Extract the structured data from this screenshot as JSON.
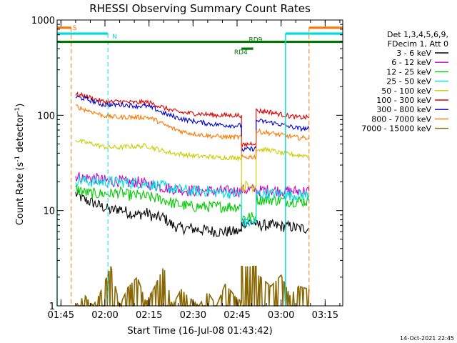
{
  "chart_data": {
    "type": "line",
    "title": "RHESSI Observing Summary Count Rates",
    "xlabel": "Start Time (16-Jul-08 01:43:42)",
    "ylabel_main": "Count Rate (s",
    "ylabel_sup1": "-1",
    "ylabel_mid": " detector",
    "ylabel_sup2": "-1",
    "ylabel_end": ")",
    "yscale": "log",
    "ylim": [
      1,
      1000
    ],
    "xlim_min": [
      103.7,
      201
    ],
    "y_ticks": [
      {
        "value": 1,
        "label": "1"
      },
      {
        "value": 10,
        "label": "10"
      },
      {
        "value": 100,
        "label": "100"
      },
      {
        "value": 1000,
        "label": "1000"
      }
    ],
    "x_ticks": [
      {
        "value": 105,
        "label": "01:45"
      },
      {
        "value": 120,
        "label": "02:00"
      },
      {
        "value": 135,
        "label": "02:15"
      },
      {
        "value": 150,
        "label": "02:30"
      },
      {
        "value": 165,
        "label": "02:45"
      },
      {
        "value": 180,
        "label": "03:00"
      },
      {
        "value": 195,
        "label": "03:15"
      }
    ],
    "legend_header": [
      "Det 1,3,4,5,6,9,",
      "FDecim 1, Att 0"
    ],
    "legend_position": "right",
    "series": [
      {
        "name": "3 - 6 keV",
        "color": "#000000",
        "points": [
          [
            110,
            15
          ],
          [
            113,
            13
          ],
          [
            116,
            12
          ],
          [
            119,
            11
          ],
          [
            122,
            10
          ],
          [
            125,
            10.5
          ],
          [
            128,
            9.5
          ],
          [
            131,
            9
          ],
          [
            134,
            9.5
          ],
          [
            137,
            8.5
          ],
          [
            140,
            8.5
          ],
          [
            143,
            7
          ],
          [
            146,
            6.5
          ],
          [
            149,
            6.5
          ],
          [
            152,
            6.3
          ],
          [
            155,
            6.2
          ],
          [
            158,
            6
          ],
          [
            161,
            6
          ],
          [
            164,
            6
          ],
          [
            166.5,
            6
          ],
          [
            166.5,
            7.5
          ],
          [
            171.5,
            7.5
          ],
          [
            171.5,
            7
          ],
          [
            176.5,
            7
          ],
          [
            180,
            6.8
          ],
          [
            183,
            6.8
          ],
          [
            186,
            6.5
          ],
          [
            189.5,
            6.5
          ]
        ]
      },
      {
        "name": "6 - 12 keV",
        "color": "#cc00cc",
        "points": [
          [
            110,
            23
          ],
          [
            113,
            22
          ],
          [
            116,
            22
          ],
          [
            119,
            21
          ],
          [
            122,
            20
          ],
          [
            125,
            20.5
          ],
          [
            128,
            19.5
          ],
          [
            131,
            20
          ],
          [
            134,
            19
          ],
          [
            137,
            18.5
          ],
          [
            140,
            17.5
          ],
          [
            143,
            17
          ],
          [
            146,
            16.5
          ],
          [
            149,
            16.2
          ],
          [
            152,
            16
          ],
          [
            155,
            16
          ],
          [
            158,
            16
          ],
          [
            161,
            16
          ],
          [
            164,
            16
          ],
          [
            166.5,
            16
          ],
          [
            166.5,
            16.5
          ],
          [
            171.5,
            16.5
          ],
          [
            171.5,
            16
          ],
          [
            176.5,
            16.5
          ],
          [
            180,
            16
          ],
          [
            183,
            16
          ],
          [
            186,
            16
          ],
          [
            189.5,
            16
          ]
        ]
      },
      {
        "name": "12 - 25 keV",
        "color": "#00cc00",
        "points": [
          [
            110,
            17
          ],
          [
            113,
            15.5
          ],
          [
            116,
            15
          ],
          [
            119,
            15
          ],
          [
            122,
            15
          ],
          [
            125,
            15.5
          ],
          [
            128,
            14.5
          ],
          [
            131,
            14.5
          ],
          [
            134,
            14
          ],
          [
            137,
            13.5
          ],
          [
            140,
            13
          ],
          [
            143,
            12
          ],
          [
            146,
            11.5
          ],
          [
            149,
            11
          ],
          [
            152,
            11
          ],
          [
            155,
            11
          ],
          [
            158,
            11
          ],
          [
            161,
            11
          ],
          [
            164,
            11
          ],
          [
            166.5,
            11
          ],
          [
            166.5,
            8.5
          ],
          [
            171.5,
            8.5
          ],
          [
            171.5,
            13
          ],
          [
            176.5,
            13
          ],
          [
            180,
            12.8
          ],
          [
            183,
            12.5
          ],
          [
            186,
            12.5
          ],
          [
            189.5,
            12.5
          ]
        ]
      },
      {
        "name": "25 - 50 keV",
        "color": "#00dddd",
        "points": [
          [
            110,
            21
          ],
          [
            113,
            20.5
          ],
          [
            116,
            20
          ],
          [
            119,
            20
          ],
          [
            122,
            20
          ],
          [
            125,
            20
          ],
          [
            128,
            19.5
          ],
          [
            131,
            19.5
          ],
          [
            134,
            19
          ],
          [
            137,
            18.5
          ],
          [
            140,
            18
          ],
          [
            143,
            17
          ],
          [
            146,
            16.5
          ],
          [
            149,
            16
          ],
          [
            152,
            16
          ],
          [
            155,
            16
          ],
          [
            158,
            15.5
          ],
          [
            161,
            15.5
          ],
          [
            164,
            15
          ],
          [
            166.5,
            15
          ],
          [
            166.5,
            7.5
          ],
          [
            171.5,
            7.5
          ],
          [
            171.5,
            15
          ],
          [
            176.5,
            15
          ],
          [
            180,
            15
          ],
          [
            183,
            14.5
          ],
          [
            186,
            14.5
          ],
          [
            189.5,
            14.5
          ]
        ]
      },
      {
        "name": "50 - 100 keV",
        "color": "#cccc00",
        "points": [
          [
            110,
            55
          ],
          [
            113,
            52
          ],
          [
            116,
            50
          ],
          [
            119,
            47
          ],
          [
            122,
            46
          ],
          [
            125,
            46
          ],
          [
            128,
            47
          ],
          [
            131,
            47
          ],
          [
            134,
            48
          ],
          [
            137,
            45
          ],
          [
            140,
            42
          ],
          [
            143,
            40
          ],
          [
            146,
            39
          ],
          [
            149,
            38
          ],
          [
            152,
            37
          ],
          [
            155,
            37
          ],
          [
            158,
            36
          ],
          [
            161,
            36
          ],
          [
            164,
            36
          ],
          [
            166.5,
            36
          ],
          [
            166.5,
            18
          ],
          [
            171.5,
            18
          ],
          [
            171.5,
            44
          ],
          [
            176.5,
            43
          ],
          [
            180,
            40
          ],
          [
            183,
            39
          ],
          [
            186,
            38
          ],
          [
            189.5,
            38
          ]
        ]
      },
      {
        "name": "100 - 300 keV",
        "color": "#dd0000",
        "points": [
          [
            110,
            165
          ],
          [
            113,
            160
          ],
          [
            116,
            150
          ],
          [
            119,
            140
          ],
          [
            122,
            138
          ],
          [
            125,
            140
          ],
          [
            128,
            137
          ],
          [
            131,
            136
          ],
          [
            134,
            138
          ],
          [
            137,
            130
          ],
          [
            140,
            120
          ],
          [
            143,
            112
          ],
          [
            146,
            107
          ],
          [
            149,
            105
          ],
          [
            152,
            104
          ],
          [
            155,
            102
          ],
          [
            158,
            100
          ],
          [
            161,
            100
          ],
          [
            164,
            100
          ],
          [
            166.5,
            100
          ],
          [
            166.5,
            48
          ],
          [
            171.5,
            52
          ],
          [
            171.5,
            112
          ],
          [
            176.5,
            108
          ],
          [
            180,
            102
          ],
          [
            183,
            98
          ],
          [
            186,
            95
          ],
          [
            189.5,
            95
          ]
        ]
      },
      {
        "name": "300 - 800 keV",
        "color": "#0000cc",
        "points": [
          [
            110,
            155
          ],
          [
            113,
            150
          ],
          [
            116,
            140
          ],
          [
            119,
            130
          ],
          [
            122,
            128
          ],
          [
            125,
            130
          ],
          [
            128,
            128
          ],
          [
            131,
            125
          ],
          [
            134,
            125
          ],
          [
            137,
            117
          ],
          [
            140,
            105
          ],
          [
            143,
            98
          ],
          [
            146,
            92
          ],
          [
            149,
            88
          ],
          [
            152,
            85
          ],
          [
            155,
            82
          ],
          [
            158,
            80
          ],
          [
            161,
            79
          ],
          [
            164,
            78
          ],
          [
            166.5,
            78
          ],
          [
            166.5,
            43
          ],
          [
            171.5,
            45
          ],
          [
            171.5,
            88
          ],
          [
            176.5,
            84
          ],
          [
            180,
            80
          ],
          [
            183,
            76
          ],
          [
            186,
            73
          ],
          [
            189.5,
            72
          ]
        ]
      },
      {
        "name": "800 - 7000 keV",
        "color": "#ff7700",
        "points": [
          [
            110,
            125
          ],
          [
            113,
            115
          ],
          [
            116,
            108
          ],
          [
            119,
            100
          ],
          [
            122,
            97
          ],
          [
            125,
            95
          ],
          [
            128,
            96
          ],
          [
            131,
            95
          ],
          [
            134,
            96
          ],
          [
            137,
            90
          ],
          [
            140,
            80
          ],
          [
            143,
            73
          ],
          [
            146,
            68
          ],
          [
            149,
            65
          ],
          [
            152,
            63
          ],
          [
            155,
            61
          ],
          [
            158,
            60
          ],
          [
            161,
            59
          ],
          [
            164,
            59
          ],
          [
            166.5,
            59
          ],
          [
            166.5,
            36
          ],
          [
            171.5,
            37
          ],
          [
            171.5,
            68
          ],
          [
            176.5,
            65
          ],
          [
            180,
            62
          ],
          [
            183,
            60
          ],
          [
            186,
            58
          ],
          [
            189.5,
            58
          ]
        ]
      },
      {
        "name": "7000 - 15000 keV",
        "color": "#886600",
        "points": [
          [
            110,
            1
          ],
          [
            113,
            1.3
          ],
          [
            116,
            1
          ],
          [
            119,
            1.5
          ],
          [
            122,
            2.6
          ],
          [
            125,
            1
          ],
          [
            128,
            1.6
          ],
          [
            131,
            2
          ],
          [
            134,
            1.1
          ],
          [
            137,
            1.6
          ],
          [
            140,
            2.6
          ],
          [
            143,
            1
          ],
          [
            146,
            1.5
          ],
          [
            149,
            1.2
          ],
          [
            152,
            1
          ],
          [
            155,
            1.4
          ],
          [
            158,
            1
          ],
          [
            161,
            1.7
          ],
          [
            164,
            1.3
          ],
          [
            166.5,
            1.1
          ],
          [
            166.5,
            2.6
          ],
          [
            171.5,
            2.6
          ],
          [
            171.5,
            2.2
          ],
          [
            176.5,
            1.6
          ],
          [
            180,
            2.1
          ],
          [
            183,
            1.3
          ],
          [
            186,
            1.6
          ],
          [
            189.5,
            1.5
          ]
        ]
      }
    ],
    "flags": [
      {
        "label": "S",
        "color": "#ff7700",
        "y": 830,
        "spans": [
          [
            103.7,
            108.5
          ],
          [
            189.5,
            201
          ]
        ],
        "vlines": [
          108.5,
          189.5,
          201
        ]
      },
      {
        "label": "N",
        "color": "#00dddd",
        "y": 720,
        "spans": [
          [
            103.7,
            121
          ],
          [
            181.5,
            201
          ]
        ],
        "vlines": [
          121,
          181.5,
          201
        ]
      },
      {
        "label": "RD9",
        "color": "#007700",
        "y": 590,
        "spans": [
          [
            103.7,
            201
          ]
        ],
        "vlines": []
      },
      {
        "label": "RD4",
        "color": "#007700",
        "y": 500,
        "spans": [
          [
            166.5,
            170.5
          ]
        ],
        "vlines": []
      }
    ],
    "cyan_solid_vlines": [
      103.7,
      181.5
    ],
    "timestamp": "14-Oct-2021 22:45"
  }
}
